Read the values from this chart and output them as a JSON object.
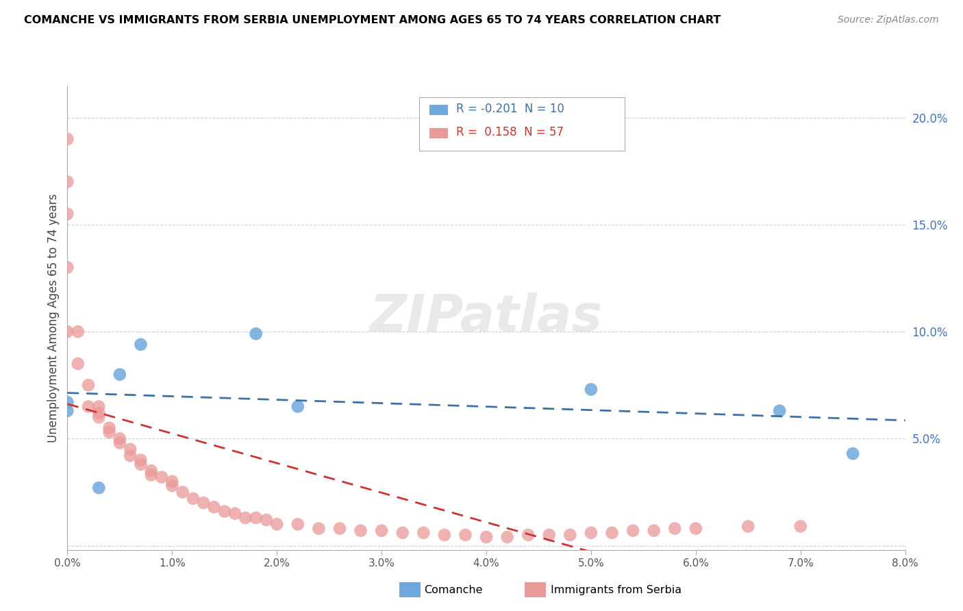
{
  "title": "COMANCHE VS IMMIGRANTS FROM SERBIA UNEMPLOYMENT AMONG AGES 65 TO 74 YEARS CORRELATION CHART",
  "source": "Source: ZipAtlas.com",
  "ylabel": "Unemployment Among Ages 65 to 74 years",
  "xlim": [
    0.0,
    0.08
  ],
  "ylim": [
    -0.002,
    0.215
  ],
  "xticks": [
    0.0,
    0.01,
    0.02,
    0.03,
    0.04,
    0.05,
    0.06,
    0.07,
    0.08
  ],
  "xticklabels": [
    "0.0%",
    "1.0%",
    "2.0%",
    "3.0%",
    "4.0%",
    "5.0%",
    "6.0%",
    "7.0%",
    "8.0%"
  ],
  "yticks": [
    0.0,
    0.05,
    0.1,
    0.15,
    0.2
  ],
  "yticklabels": [
    "",
    "5.0%",
    "10.0%",
    "15.0%",
    "20.0%"
  ],
  "comanche_color": "#6fa8dc",
  "serbia_color": "#ea9999",
  "comanche_line_color": "#3d6fa8",
  "serbia_line_color": "#cc3333",
  "ytick_color": "#4472c4",
  "comanche_R": -0.201,
  "comanche_N": 10,
  "serbia_R": 0.158,
  "serbia_N": 57,
  "watermark": "ZIPatlas",
  "comanche_x": [
    0.0,
    0.0,
    0.003,
    0.005,
    0.007,
    0.018,
    0.022,
    0.05,
    0.068,
    0.075
  ],
  "comanche_y": [
    0.067,
    0.063,
    0.027,
    0.08,
    0.094,
    0.099,
    0.065,
    0.073,
    0.063,
    0.043
  ],
  "serbia_x": [
    0.0,
    0.0,
    0.0,
    0.0,
    0.0,
    0.001,
    0.001,
    0.002,
    0.002,
    0.003,
    0.003,
    0.003,
    0.004,
    0.004,
    0.005,
    0.005,
    0.006,
    0.006,
    0.007,
    0.007,
    0.008,
    0.008,
    0.009,
    0.01,
    0.01,
    0.011,
    0.012,
    0.013,
    0.014,
    0.015,
    0.016,
    0.017,
    0.018,
    0.019,
    0.02,
    0.022,
    0.024,
    0.026,
    0.028,
    0.03,
    0.032,
    0.034,
    0.036,
    0.038,
    0.04,
    0.042,
    0.044,
    0.046,
    0.048,
    0.05,
    0.052,
    0.054,
    0.056,
    0.058,
    0.06,
    0.065,
    0.07
  ],
  "serbia_y": [
    0.19,
    0.17,
    0.155,
    0.13,
    0.1,
    0.1,
    0.085,
    0.075,
    0.065,
    0.065,
    0.062,
    0.06,
    0.055,
    0.053,
    0.05,
    0.048,
    0.045,
    0.042,
    0.04,
    0.038,
    0.035,
    0.033,
    0.032,
    0.03,
    0.028,
    0.025,
    0.022,
    0.02,
    0.018,
    0.016,
    0.015,
    0.013,
    0.013,
    0.012,
    0.01,
    0.01,
    0.008,
    0.008,
    0.007,
    0.007,
    0.006,
    0.006,
    0.005,
    0.005,
    0.004,
    0.004,
    0.005,
    0.005,
    0.005,
    0.006,
    0.006,
    0.007,
    0.007,
    0.008,
    0.008,
    0.009,
    0.009
  ]
}
